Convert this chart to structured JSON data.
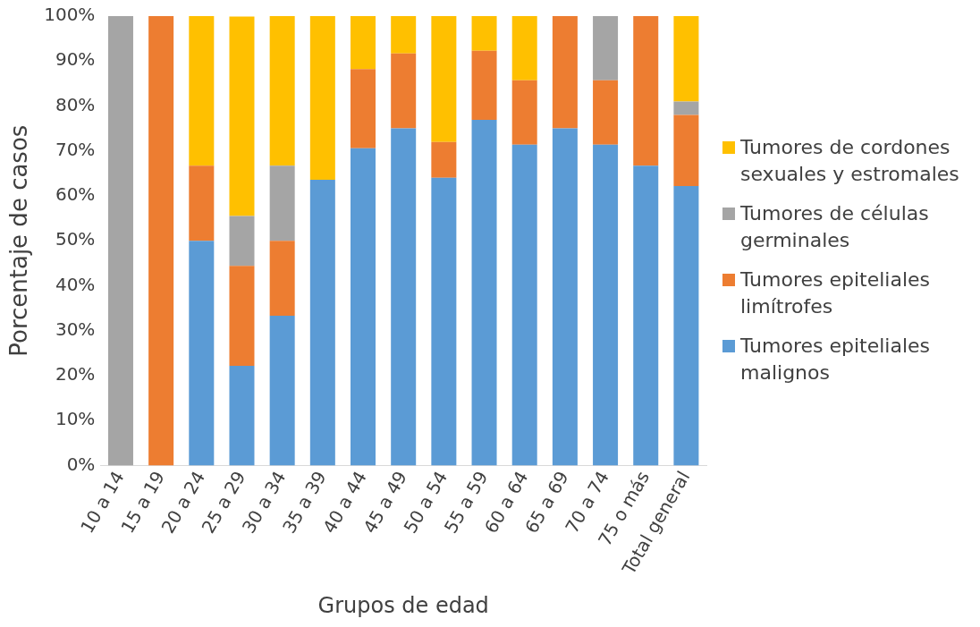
{
  "chart_data": {
    "type": "bar",
    "stacked": true,
    "xlabel": "Grupos de edad",
    "ylabel": "Porcentaje de casos",
    "categories": [
      "10 a 14",
      "15 a 19",
      "20 a 24",
      "25 a 29",
      "30 a 34",
      "35 a 39",
      "40 a 44",
      "45 a 49",
      "50 a 54",
      "55 a 59",
      "60 a 64",
      "65 a 69",
      "70 a 74",
      "75 o más",
      "Total general"
    ],
    "series": [
      {
        "name": "Tumores epiteliales malignos",
        "color": "#5b9bd5",
        "values": [
          0,
          0,
          50,
          22.2,
          33.3,
          63.6,
          70.6,
          75,
          64,
          76.9,
          71.4,
          75,
          71.4,
          66.7,
          62.2
        ]
      },
      {
        "name": "Tumores epiteliales limítrofes",
        "color": "#ed7d31",
        "values": [
          0,
          100,
          16.7,
          22.2,
          16.7,
          0,
          17.6,
          16.7,
          8,
          15.4,
          14.3,
          25,
          14.3,
          33.3,
          15.8
        ]
      },
      {
        "name": "Tumores de células germinales",
        "color": "#a5a5a5",
        "values": [
          100,
          0,
          0,
          11.1,
          16.7,
          0,
          0,
          0,
          0,
          0,
          0,
          0,
          14.3,
          0,
          3
        ]
      },
      {
        "name": "Tumores de cordones sexuales y estromales",
        "color": "#ffc000",
        "values": [
          0,
          0,
          33.3,
          44.4,
          33.3,
          36.4,
          11.8,
          8.3,
          28,
          7.7,
          14.3,
          0,
          0,
          0,
          19
        ]
      }
    ],
    "ylim": [
      0,
      100
    ],
    "yticks": [
      {
        "value": 0,
        "label": "0%"
      },
      {
        "value": 10,
        "label": "10%"
      },
      {
        "value": 20,
        "label": "20%"
      },
      {
        "value": 30,
        "label": "30%"
      },
      {
        "value": 40,
        "label": "40%"
      },
      {
        "value": 50,
        "label": "50%"
      },
      {
        "value": 60,
        "label": "60%"
      },
      {
        "value": 70,
        "label": "70%"
      },
      {
        "value": 80,
        "label": "80%"
      },
      {
        "value": 90,
        "label": "90%"
      },
      {
        "value": 100,
        "label": "100%"
      }
    ],
    "grid": false,
    "legend": "right"
  }
}
